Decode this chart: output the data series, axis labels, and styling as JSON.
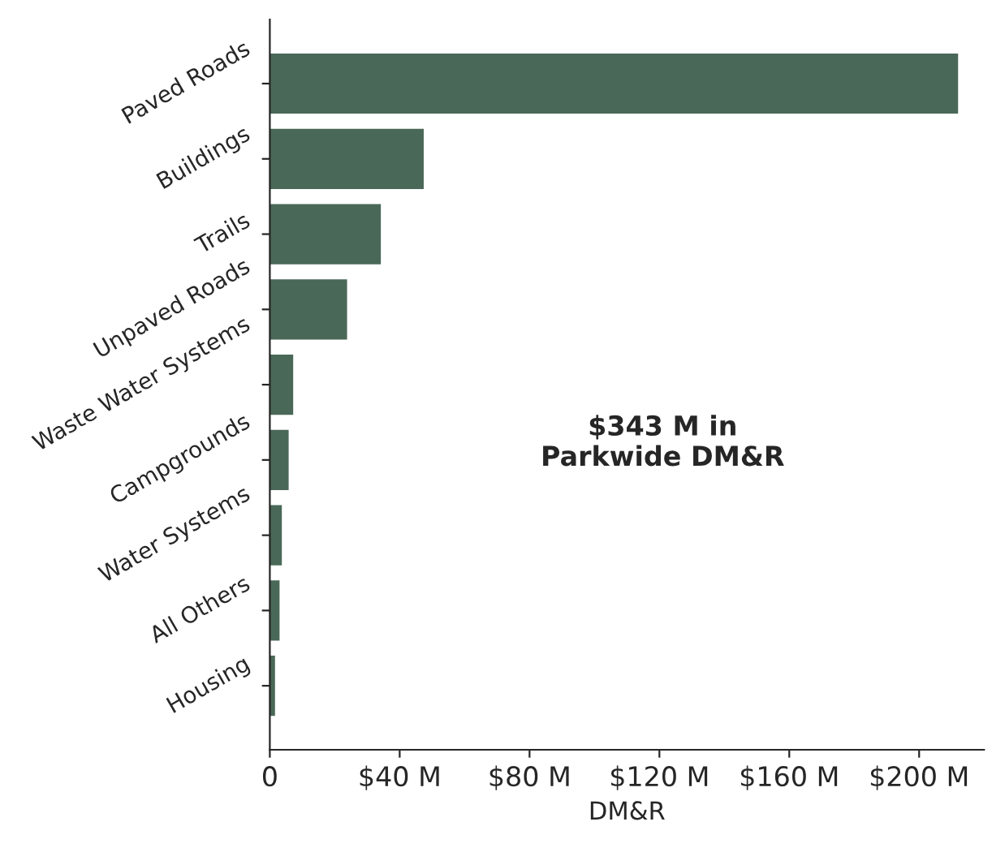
{
  "chart_data": {
    "type": "bar",
    "orientation": "horizontal",
    "categories": [
      "Paved Roads",
      "Buildings",
      "Trails",
      "Unpaved Roads",
      "Waste Water Systems",
      "Campgrounds",
      "Water Systems",
      "All Others",
      "Housing"
    ],
    "values": [
      212,
      47.4,
      34.2,
      23.8,
      7.2,
      5.8,
      3.7,
      3.0,
      1.6
    ],
    "color": "#4a6858",
    "xlim": [
      0,
      220
    ],
    "xticks": [
      0,
      {
        "value": 40,
        "label": "$40 M"
      },
      {
        "value": 80,
        "label": "$80 M"
      },
      {
        "value": 120,
        "label": "$120 M"
      },
      {
        "value": 160,
        "label": "$160 M"
      },
      {
        "value": 200,
        "label": "$200 M"
      }
    ],
    "xlabel": "DM&R",
    "annotations": [
      "$343 M in\nParkwide DM&R"
    ],
    "grid": false,
    "legend": false
  }
}
